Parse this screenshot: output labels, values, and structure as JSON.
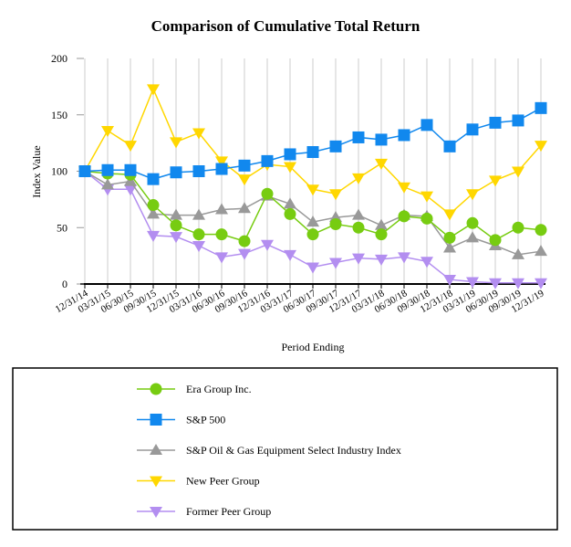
{
  "chart_data": {
    "type": "line",
    "title": "Comparison of Cumulative Total Return",
    "xlabel": "Period Ending",
    "ylabel": "Index Value",
    "ylim": [
      0,
      200
    ],
    "yticks": [
      0,
      50,
      100,
      150,
      200
    ],
    "grid": "vertical",
    "legend": "bottom",
    "categories": [
      "12/31/14",
      "03/31/15",
      "06/30/15",
      "09/30/15",
      "12/31/15",
      "03/31/16",
      "06/30/16",
      "09/30/16",
      "12/31/16",
      "03/31/17",
      "06/30/17",
      "09/30/17",
      "12/31/17",
      "03/31/18",
      "06/30/18",
      "09/30/18",
      "12/31/18",
      "03/31/19",
      "06/30/19",
      "09/30/19",
      "12/31/19"
    ],
    "series": [
      {
        "name": "Era Group Inc.",
        "color": "#77cc11",
        "marker": "circle",
        "values": [
          100,
          98,
          97,
          70,
          52,
          44,
          44,
          38,
          80,
          62,
          44,
          53,
          50,
          44,
          60,
          58,
          41,
          54,
          39,
          50,
          48
        ]
      },
      {
        "name": "S&P 500",
        "color": "#1188ee",
        "marker": "square",
        "values": [
          100,
          101,
          101,
          93,
          99,
          100,
          102,
          105,
          109,
          115,
          117,
          122,
          130,
          128,
          132,
          141,
          122,
          137,
          143,
          145,
          156
        ]
      },
      {
        "name": "S&P Oil & Gas Equipment Select Industry Index",
        "color": "#999999",
        "marker": "triangle-up",
        "values": [
          100,
          88,
          91,
          62,
          61,
          61,
          66,
          67,
          78,
          71,
          55,
          59,
          61,
          52,
          61,
          60,
          32,
          41,
          34,
          26,
          29
        ]
      },
      {
        "name": "New Peer Group",
        "color": "#ffd700",
        "marker": "triangle-down",
        "values": [
          100,
          136,
          123,
          173,
          126,
          134,
          109,
          93,
          106,
          104,
          84,
          80,
          94,
          107,
          86,
          78,
          62,
          80,
          92,
          100,
          123
        ]
      },
      {
        "name": "Former Peer Group",
        "color": "#b38ef0",
        "marker": "triangle-down",
        "values": [
          100,
          84,
          84,
          43,
          42,
          34,
          24,
          27,
          35,
          26,
          15,
          19,
          23,
          22,
          24,
          20,
          4,
          2,
          1,
          1,
          1
        ]
      }
    ]
  }
}
